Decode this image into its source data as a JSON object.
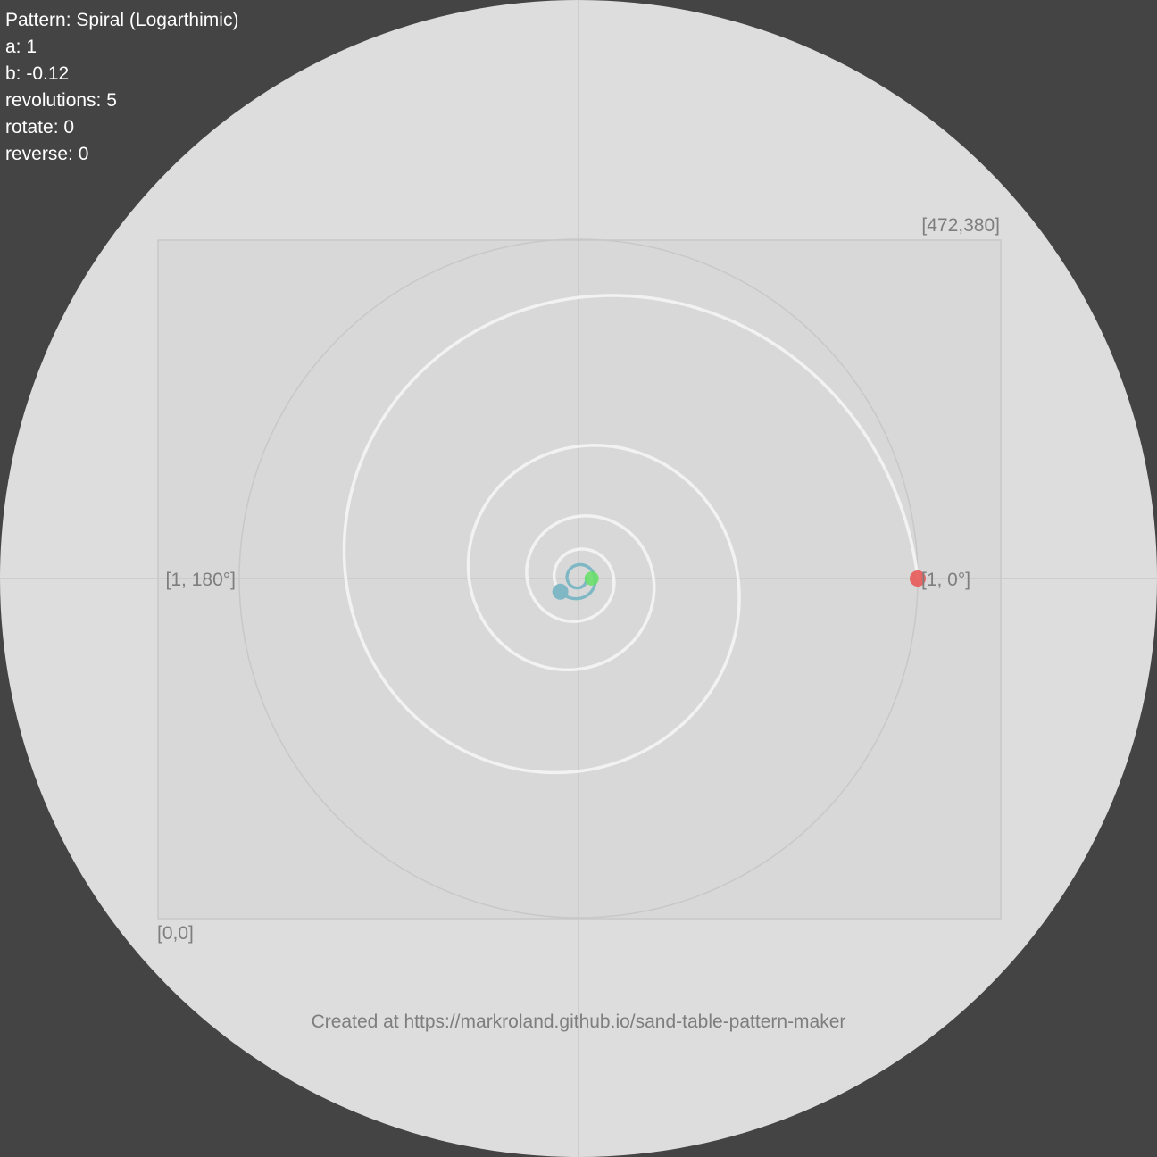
{
  "pattern_info": {
    "pattern_label": "Pattern: Spiral (Logarthimic)",
    "a_label": "a: 1",
    "b_label": "b: -0.12",
    "revolutions_label": "revolutions: 5",
    "rotate_label": "rotate: 0",
    "reverse_label": "reverse: 0"
  },
  "pattern": {
    "type": "Spiral (Logarthimic)",
    "a": 1,
    "b": -0.12,
    "revolutions": 5,
    "rotate": 0,
    "reverse": 0
  },
  "table_labels": {
    "top_right_corner": "[472,380]",
    "bottom_left_corner": "[0,0]",
    "polar_zero": "[1, 0°]",
    "polar_180": "[1, 180°]"
  },
  "preview": {
    "traced_fraction": 0.72
  },
  "footer": {
    "credit": "Created at https://markroland.github.io/sand-table-pattern-maker"
  },
  "colors": {
    "page_background": "#444444",
    "table_surface": "#dddddd",
    "bounds_rect": "#d8d8d8",
    "guide_lines": "#c8c8c8",
    "path_untraced": "#f2f2f2",
    "path_traced": "#7fb8c4",
    "start_marker": "#e85a5a",
    "current_marker": "#7fb8c4",
    "end_marker": "#66e066",
    "label_text": "#7e7e7e",
    "info_text": "#ffffff"
  }
}
